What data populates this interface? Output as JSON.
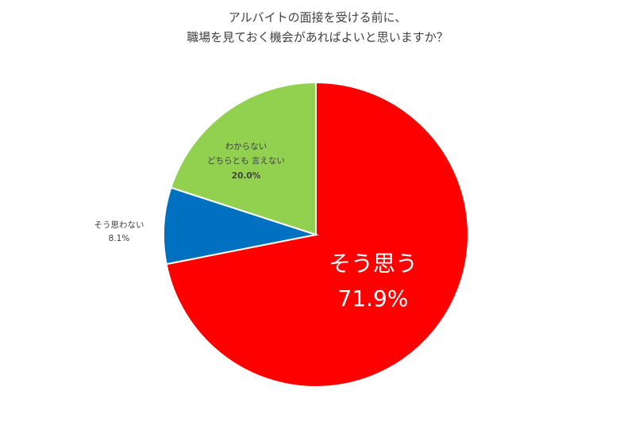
{
  "chart_data": {
    "type": "pie",
    "title_lines": [
      "アルバイトの面接を受ける前に、",
      "職場を見ておく機会があればよいと思いますか？"
    ],
    "slices": [
      {
        "label": "そう思う",
        "value": 71.9,
        "value_text": "71.9%",
        "color": "#ff0000"
      },
      {
        "label": "そう思わない",
        "value": 8.1,
        "value_text": "8.1%",
        "color": "#0070c0"
      },
      {
        "label_lines": [
          "わからない",
          "どちらとも 言えない"
        ],
        "value": 20.0,
        "value_text": "20.0%",
        "color": "#92d050"
      }
    ],
    "start_angle_deg": 0,
    "direction": "clockwise",
    "legend": "none"
  }
}
